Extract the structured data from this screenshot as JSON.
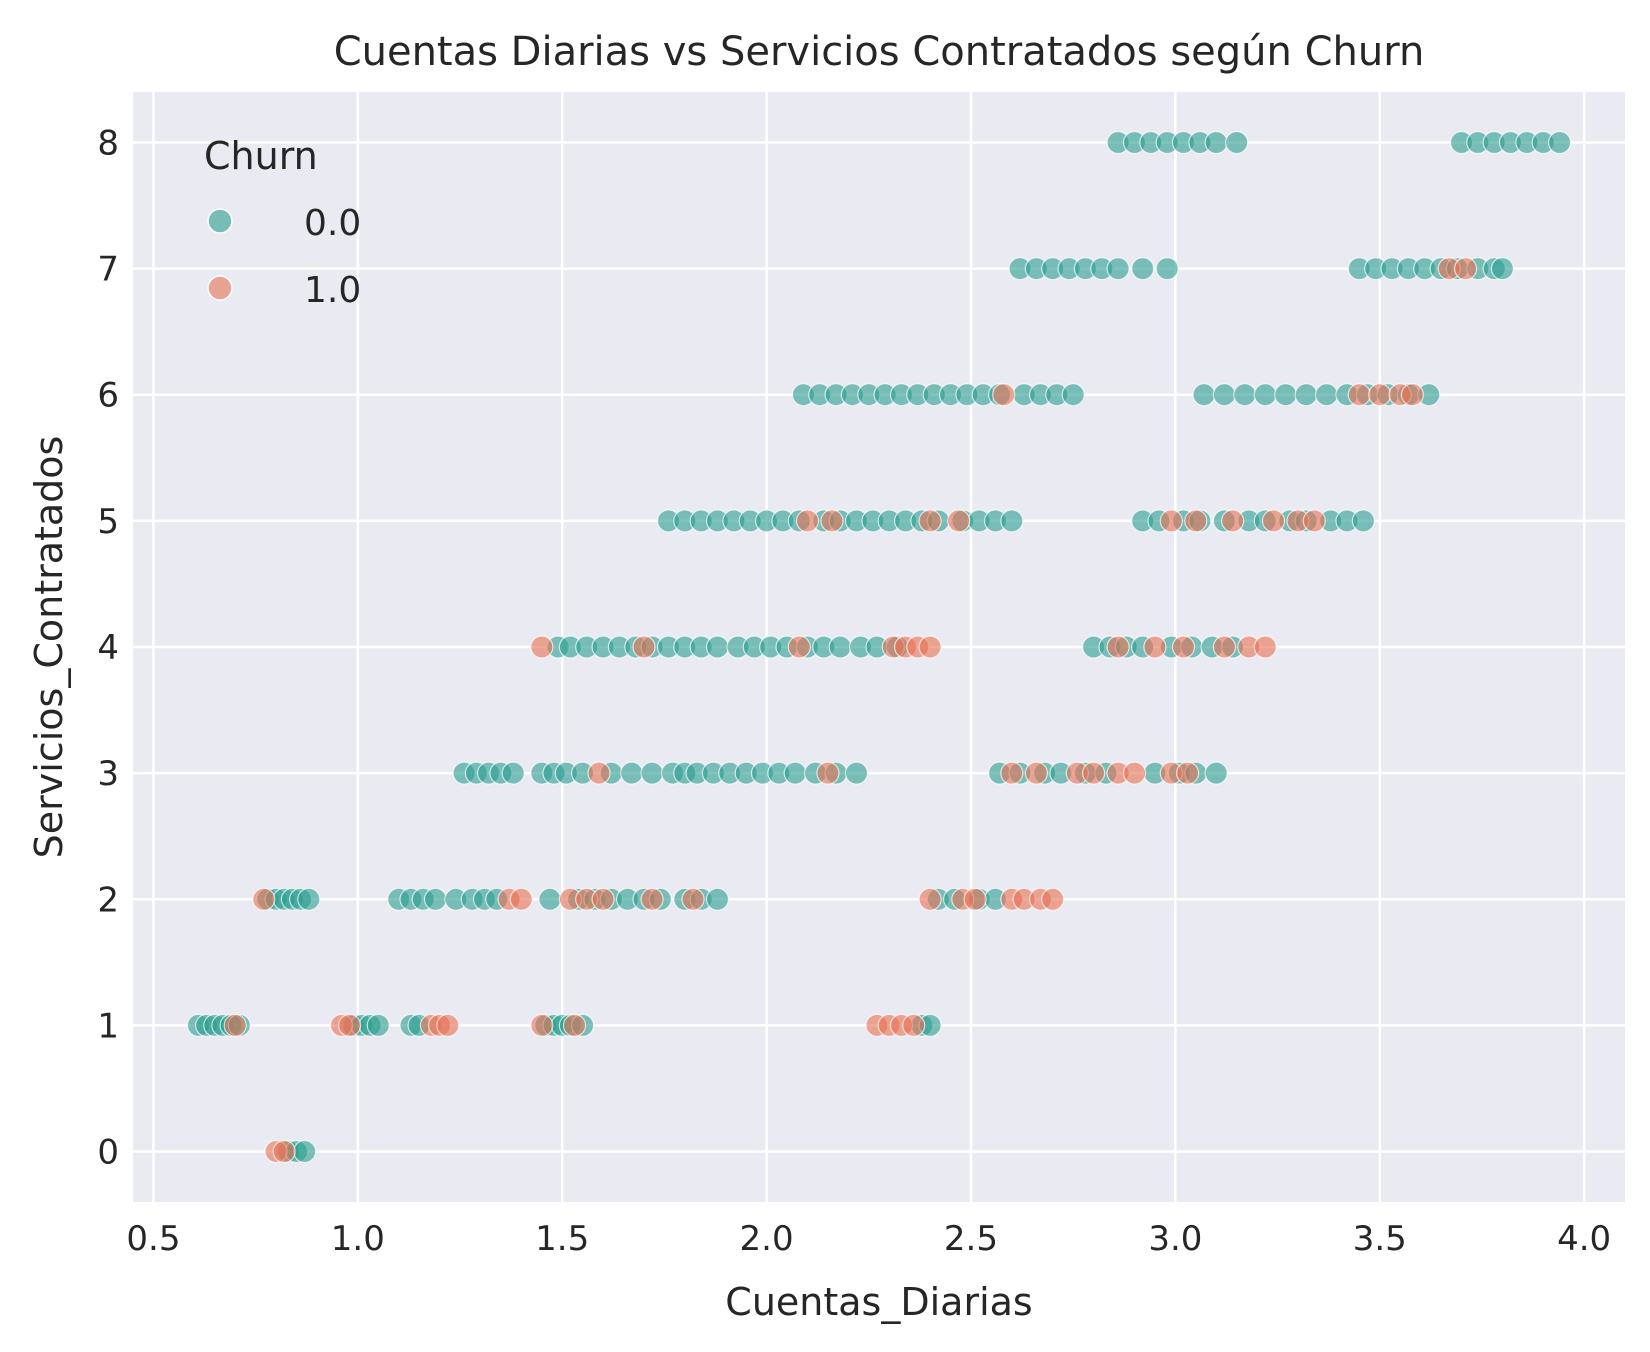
{
  "chart_data": {
    "type": "scatter",
    "title": "Cuentas Diarias vs Servicios Contratados según Churn",
    "xlabel": "Cuentas_Diarias",
    "ylabel": "Servicios_Contratados",
    "xlim": [
      0.45,
      4.1
    ],
    "ylim": [
      -0.4,
      8.4
    ],
    "xticks": [
      "0.5",
      "1.0",
      "1.5",
      "2.0",
      "2.5",
      "3.0",
      "3.5",
      "4.0"
    ],
    "yticks": [
      "0",
      "1",
      "2",
      "3",
      "4",
      "5",
      "6",
      "7",
      "8"
    ],
    "grid": true,
    "legend": {
      "title": "Churn",
      "placement": "top-left",
      "entries": [
        "0.0",
        "1.0"
      ]
    },
    "colors": {
      "0.0": "#2a9d8f",
      "1.0": "#e76f51",
      "background": "#eaeaf2",
      "grid": "#ffffff"
    },
    "series": [
      {
        "name": "0.0",
        "color": "#2a9d8f",
        "points": [
          [
            0.83,
            0
          ],
          [
            0.85,
            0
          ],
          [
            0.87,
            0
          ],
          [
            0.61,
            1
          ],
          [
            0.63,
            1
          ],
          [
            0.65,
            1
          ],
          [
            0.67,
            1
          ],
          [
            0.69,
            1
          ],
          [
            0.71,
            1
          ],
          [
            0.99,
            1
          ],
          [
            1.01,
            1
          ],
          [
            1.03,
            1
          ],
          [
            1.05,
            1
          ],
          [
            1.13,
            1
          ],
          [
            1.15,
            1
          ],
          [
            1.46,
            1
          ],
          [
            1.48,
            1
          ],
          [
            1.5,
            1
          ],
          [
            1.52,
            1
          ],
          [
            1.55,
            1
          ],
          [
            2.38,
            1
          ],
          [
            2.4,
            1
          ],
          [
            0.78,
            2
          ],
          [
            0.8,
            2
          ],
          [
            0.82,
            2
          ],
          [
            0.84,
            2
          ],
          [
            0.86,
            2
          ],
          [
            0.88,
            2
          ],
          [
            1.1,
            2
          ],
          [
            1.13,
            2
          ],
          [
            1.16,
            2
          ],
          [
            1.19,
            2
          ],
          [
            1.24,
            2
          ],
          [
            1.28,
            2
          ],
          [
            1.31,
            2
          ],
          [
            1.34,
            2
          ],
          [
            1.47,
            2
          ],
          [
            1.54,
            2
          ],
          [
            1.58,
            2
          ],
          [
            1.62,
            2
          ],
          [
            1.66,
            2
          ],
          [
            1.7,
            2
          ],
          [
            1.74,
            2
          ],
          [
            1.8,
            2
          ],
          [
            1.84,
            2
          ],
          [
            1.88,
            2
          ],
          [
            2.42,
            2
          ],
          [
            2.46,
            2
          ],
          [
            2.52,
            2
          ],
          [
            2.56,
            2
          ],
          [
            1.26,
            3
          ],
          [
            1.29,
            3
          ],
          [
            1.32,
            3
          ],
          [
            1.35,
            3
          ],
          [
            1.38,
            3
          ],
          [
            1.45,
            3
          ],
          [
            1.48,
            3
          ],
          [
            1.51,
            3
          ],
          [
            1.55,
            3
          ],
          [
            1.62,
            3
          ],
          [
            1.67,
            3
          ],
          [
            1.72,
            3
          ],
          [
            1.77,
            3
          ],
          [
            1.8,
            3
          ],
          [
            1.83,
            3
          ],
          [
            1.87,
            3
          ],
          [
            1.91,
            3
          ],
          [
            1.95,
            3
          ],
          [
            1.99,
            3
          ],
          [
            2.03,
            3
          ],
          [
            2.07,
            3
          ],
          [
            2.12,
            3
          ],
          [
            2.17,
            3
          ],
          [
            2.22,
            3
          ],
          [
            2.57,
            3
          ],
          [
            2.62,
            3
          ],
          [
            2.68,
            3
          ],
          [
            2.72,
            3
          ],
          [
            2.78,
            3
          ],
          [
            2.83,
            3
          ],
          [
            2.95,
            3
          ],
          [
            3.01,
            3
          ],
          [
            3.05,
            3
          ],
          [
            3.1,
            3
          ],
          [
            1.49,
            4
          ],
          [
            1.52,
            4
          ],
          [
            1.56,
            4
          ],
          [
            1.6,
            4
          ],
          [
            1.64,
            4
          ],
          [
            1.68,
            4
          ],
          [
            1.72,
            4
          ],
          [
            1.76,
            4
          ],
          [
            1.8,
            4
          ],
          [
            1.84,
            4
          ],
          [
            1.88,
            4
          ],
          [
            1.93,
            4
          ],
          [
            1.97,
            4
          ],
          [
            2.01,
            4
          ],
          [
            2.05,
            4
          ],
          [
            2.1,
            4
          ],
          [
            2.14,
            4
          ],
          [
            2.18,
            4
          ],
          [
            2.23,
            4
          ],
          [
            2.27,
            4
          ],
          [
            2.32,
            4
          ],
          [
            2.8,
            4
          ],
          [
            2.84,
            4
          ],
          [
            2.88,
            4
          ],
          [
            2.92,
            4
          ],
          [
            2.99,
            4
          ],
          [
            3.04,
            4
          ],
          [
            3.09,
            4
          ],
          [
            3.14,
            4
          ],
          [
            1.76,
            5
          ],
          [
            1.8,
            5
          ],
          [
            1.84,
            5
          ],
          [
            1.88,
            5
          ],
          [
            1.92,
            5
          ],
          [
            1.96,
            5
          ],
          [
            2.0,
            5
          ],
          [
            2.04,
            5
          ],
          [
            2.08,
            5
          ],
          [
            2.14,
            5
          ],
          [
            2.18,
            5
          ],
          [
            2.22,
            5
          ],
          [
            2.26,
            5
          ],
          [
            2.3,
            5
          ],
          [
            2.34,
            5
          ],
          [
            2.38,
            5
          ],
          [
            2.42,
            5
          ],
          [
            2.48,
            5
          ],
          [
            2.52,
            5
          ],
          [
            2.56,
            5
          ],
          [
            2.6,
            5
          ],
          [
            2.92,
            5
          ],
          [
            2.96,
            5
          ],
          [
            3.02,
            5
          ],
          [
            3.06,
            5
          ],
          [
            3.12,
            5
          ],
          [
            3.18,
            5
          ],
          [
            3.22,
            5
          ],
          [
            3.28,
            5
          ],
          [
            3.32,
            5
          ],
          [
            3.38,
            5
          ],
          [
            3.42,
            5
          ],
          [
            3.46,
            5
          ],
          [
            2.09,
            6
          ],
          [
            2.13,
            6
          ],
          [
            2.17,
            6
          ],
          [
            2.21,
            6
          ],
          [
            2.25,
            6
          ],
          [
            2.29,
            6
          ],
          [
            2.33,
            6
          ],
          [
            2.37,
            6
          ],
          [
            2.41,
            6
          ],
          [
            2.45,
            6
          ],
          [
            2.49,
            6
          ],
          [
            2.53,
            6
          ],
          [
            2.57,
            6
          ],
          [
            2.63,
            6
          ],
          [
            2.67,
            6
          ],
          [
            2.71,
            6
          ],
          [
            2.75,
            6
          ],
          [
            3.07,
            6
          ],
          [
            3.12,
            6
          ],
          [
            3.17,
            6
          ],
          [
            3.22,
            6
          ],
          [
            3.27,
            6
          ],
          [
            3.32,
            6
          ],
          [
            3.37,
            6
          ],
          [
            3.42,
            6
          ],
          [
            3.47,
            6
          ],
          [
            3.52,
            6
          ],
          [
            3.57,
            6
          ],
          [
            3.62,
            6
          ],
          [
            2.62,
            7
          ],
          [
            2.66,
            7
          ],
          [
            2.7,
            7
          ],
          [
            2.74,
            7
          ],
          [
            2.78,
            7
          ],
          [
            2.82,
            7
          ],
          [
            2.86,
            7
          ],
          [
            2.92,
            7
          ],
          [
            2.98,
            7
          ],
          [
            3.45,
            7
          ],
          [
            3.49,
            7
          ],
          [
            3.53,
            7
          ],
          [
            3.57,
            7
          ],
          [
            3.61,
            7
          ],
          [
            3.65,
            7
          ],
          [
            3.69,
            7
          ],
          [
            3.74,
            7
          ],
          [
            3.78,
            7
          ],
          [
            3.8,
            7
          ],
          [
            2.86,
            8
          ],
          [
            2.9,
            8
          ],
          [
            2.94,
            8
          ],
          [
            2.98,
            8
          ],
          [
            3.02,
            8
          ],
          [
            3.06,
            8
          ],
          [
            3.1,
            8
          ],
          [
            3.15,
            8
          ],
          [
            3.7,
            8
          ],
          [
            3.74,
            8
          ],
          [
            3.78,
            8
          ],
          [
            3.82,
            8
          ],
          [
            3.86,
            8
          ],
          [
            3.9,
            8
          ],
          [
            3.94,
            8
          ]
        ]
      },
      {
        "name": "1.0",
        "color": "#e76f51",
        "points": [
          [
            0.8,
            0
          ],
          [
            0.82,
            0
          ],
          [
            0.7,
            1
          ],
          [
            0.96,
            1
          ],
          [
            0.98,
            1
          ],
          [
            1.18,
            1
          ],
          [
            1.2,
            1
          ],
          [
            1.22,
            1
          ],
          [
            1.45,
            1
          ],
          [
            1.53,
            1
          ],
          [
            2.27,
            1
          ],
          [
            2.3,
            1
          ],
          [
            2.33,
            1
          ],
          [
            2.36,
            1
          ],
          [
            0.77,
            2
          ],
          [
            1.37,
            2
          ],
          [
            1.4,
            2
          ],
          [
            1.52,
            2
          ],
          [
            1.56,
            2
          ],
          [
            1.6,
            2
          ],
          [
            1.72,
            2
          ],
          [
            1.82,
            2
          ],
          [
            2.4,
            2
          ],
          [
            2.48,
            2
          ],
          [
            2.51,
            2
          ],
          [
            2.6,
            2
          ],
          [
            2.63,
            2
          ],
          [
            2.67,
            2
          ],
          [
            2.7,
            2
          ],
          [
            1.59,
            3
          ],
          [
            2.15,
            3
          ],
          [
            2.6,
            3
          ],
          [
            2.66,
            3
          ],
          [
            2.76,
            3
          ],
          [
            2.8,
            3
          ],
          [
            2.86,
            3
          ],
          [
            2.9,
            3
          ],
          [
            2.99,
            3
          ],
          [
            3.03,
            3
          ],
          [
            1.45,
            4
          ],
          [
            1.7,
            4
          ],
          [
            2.08,
            4
          ],
          [
            2.31,
            4
          ],
          [
            2.34,
            4
          ],
          [
            2.37,
            4
          ],
          [
            2.4,
            4
          ],
          [
            2.86,
            4
          ],
          [
            2.95,
            4
          ],
          [
            3.02,
            4
          ],
          [
            3.12,
            4
          ],
          [
            3.18,
            4
          ],
          [
            3.22,
            4
          ],
          [
            2.1,
            5
          ],
          [
            2.16,
            5
          ],
          [
            2.4,
            5
          ],
          [
            2.47,
            5
          ],
          [
            2.99,
            5
          ],
          [
            3.05,
            5
          ],
          [
            3.14,
            5
          ],
          [
            3.24,
            5
          ],
          [
            3.3,
            5
          ],
          [
            3.34,
            5
          ],
          [
            2.58,
            6
          ],
          [
            3.45,
            6
          ],
          [
            3.5,
            6
          ],
          [
            3.55,
            6
          ],
          [
            3.58,
            6
          ],
          [
            3.67,
            7
          ],
          [
            3.71,
            7
          ]
        ]
      }
    ]
  }
}
